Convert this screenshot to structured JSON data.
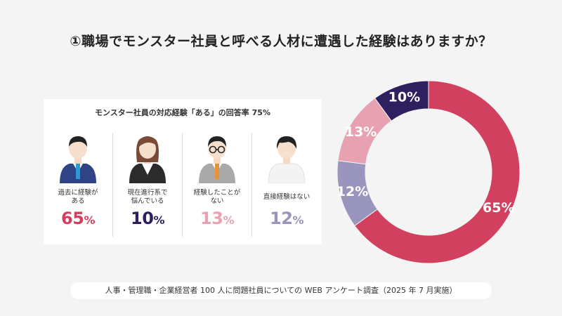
{
  "title": "①職場でモンスター社員と呼べる人材に遭遇した経験はありますか？",
  "panel": {
    "title": "モンスター社員の対応経験「ある」の回答率 75%",
    "items": [
      {
        "label": "過去に経験が\nある",
        "value": "65",
        "unit": "%",
        "color": "#d1405f"
      },
      {
        "label": "現在進行系で\n悩んでいる",
        "value": "10",
        "unit": "%",
        "color": "#2e1f5e"
      },
      {
        "label": "経験したことが\nない",
        "value": "13",
        "unit": "%",
        "color": "#e8a1b0"
      },
      {
        "label": "直接経験はない",
        "value": "12",
        "unit": "%",
        "color": "#9a95bd"
      }
    ]
  },
  "chart_data": {
    "type": "pie",
    "donut": true,
    "start": "top",
    "direction": "clockwise",
    "slices": [
      {
        "value": 65,
        "label": "65%",
        "color": "#d1405f"
      },
      {
        "value": 12,
        "label": "12%",
        "color": "#9a95bd"
      },
      {
        "value": 13,
        "label": "13%",
        "color": "#e8a1b0"
      },
      {
        "value": 10,
        "label": "10%",
        "color": "#2e1f5e"
      }
    ]
  },
  "footer": "人事・管理職・企業経営者 100 人に問題社員についての WEB アンケート調査（2025 年 7 月実施）"
}
